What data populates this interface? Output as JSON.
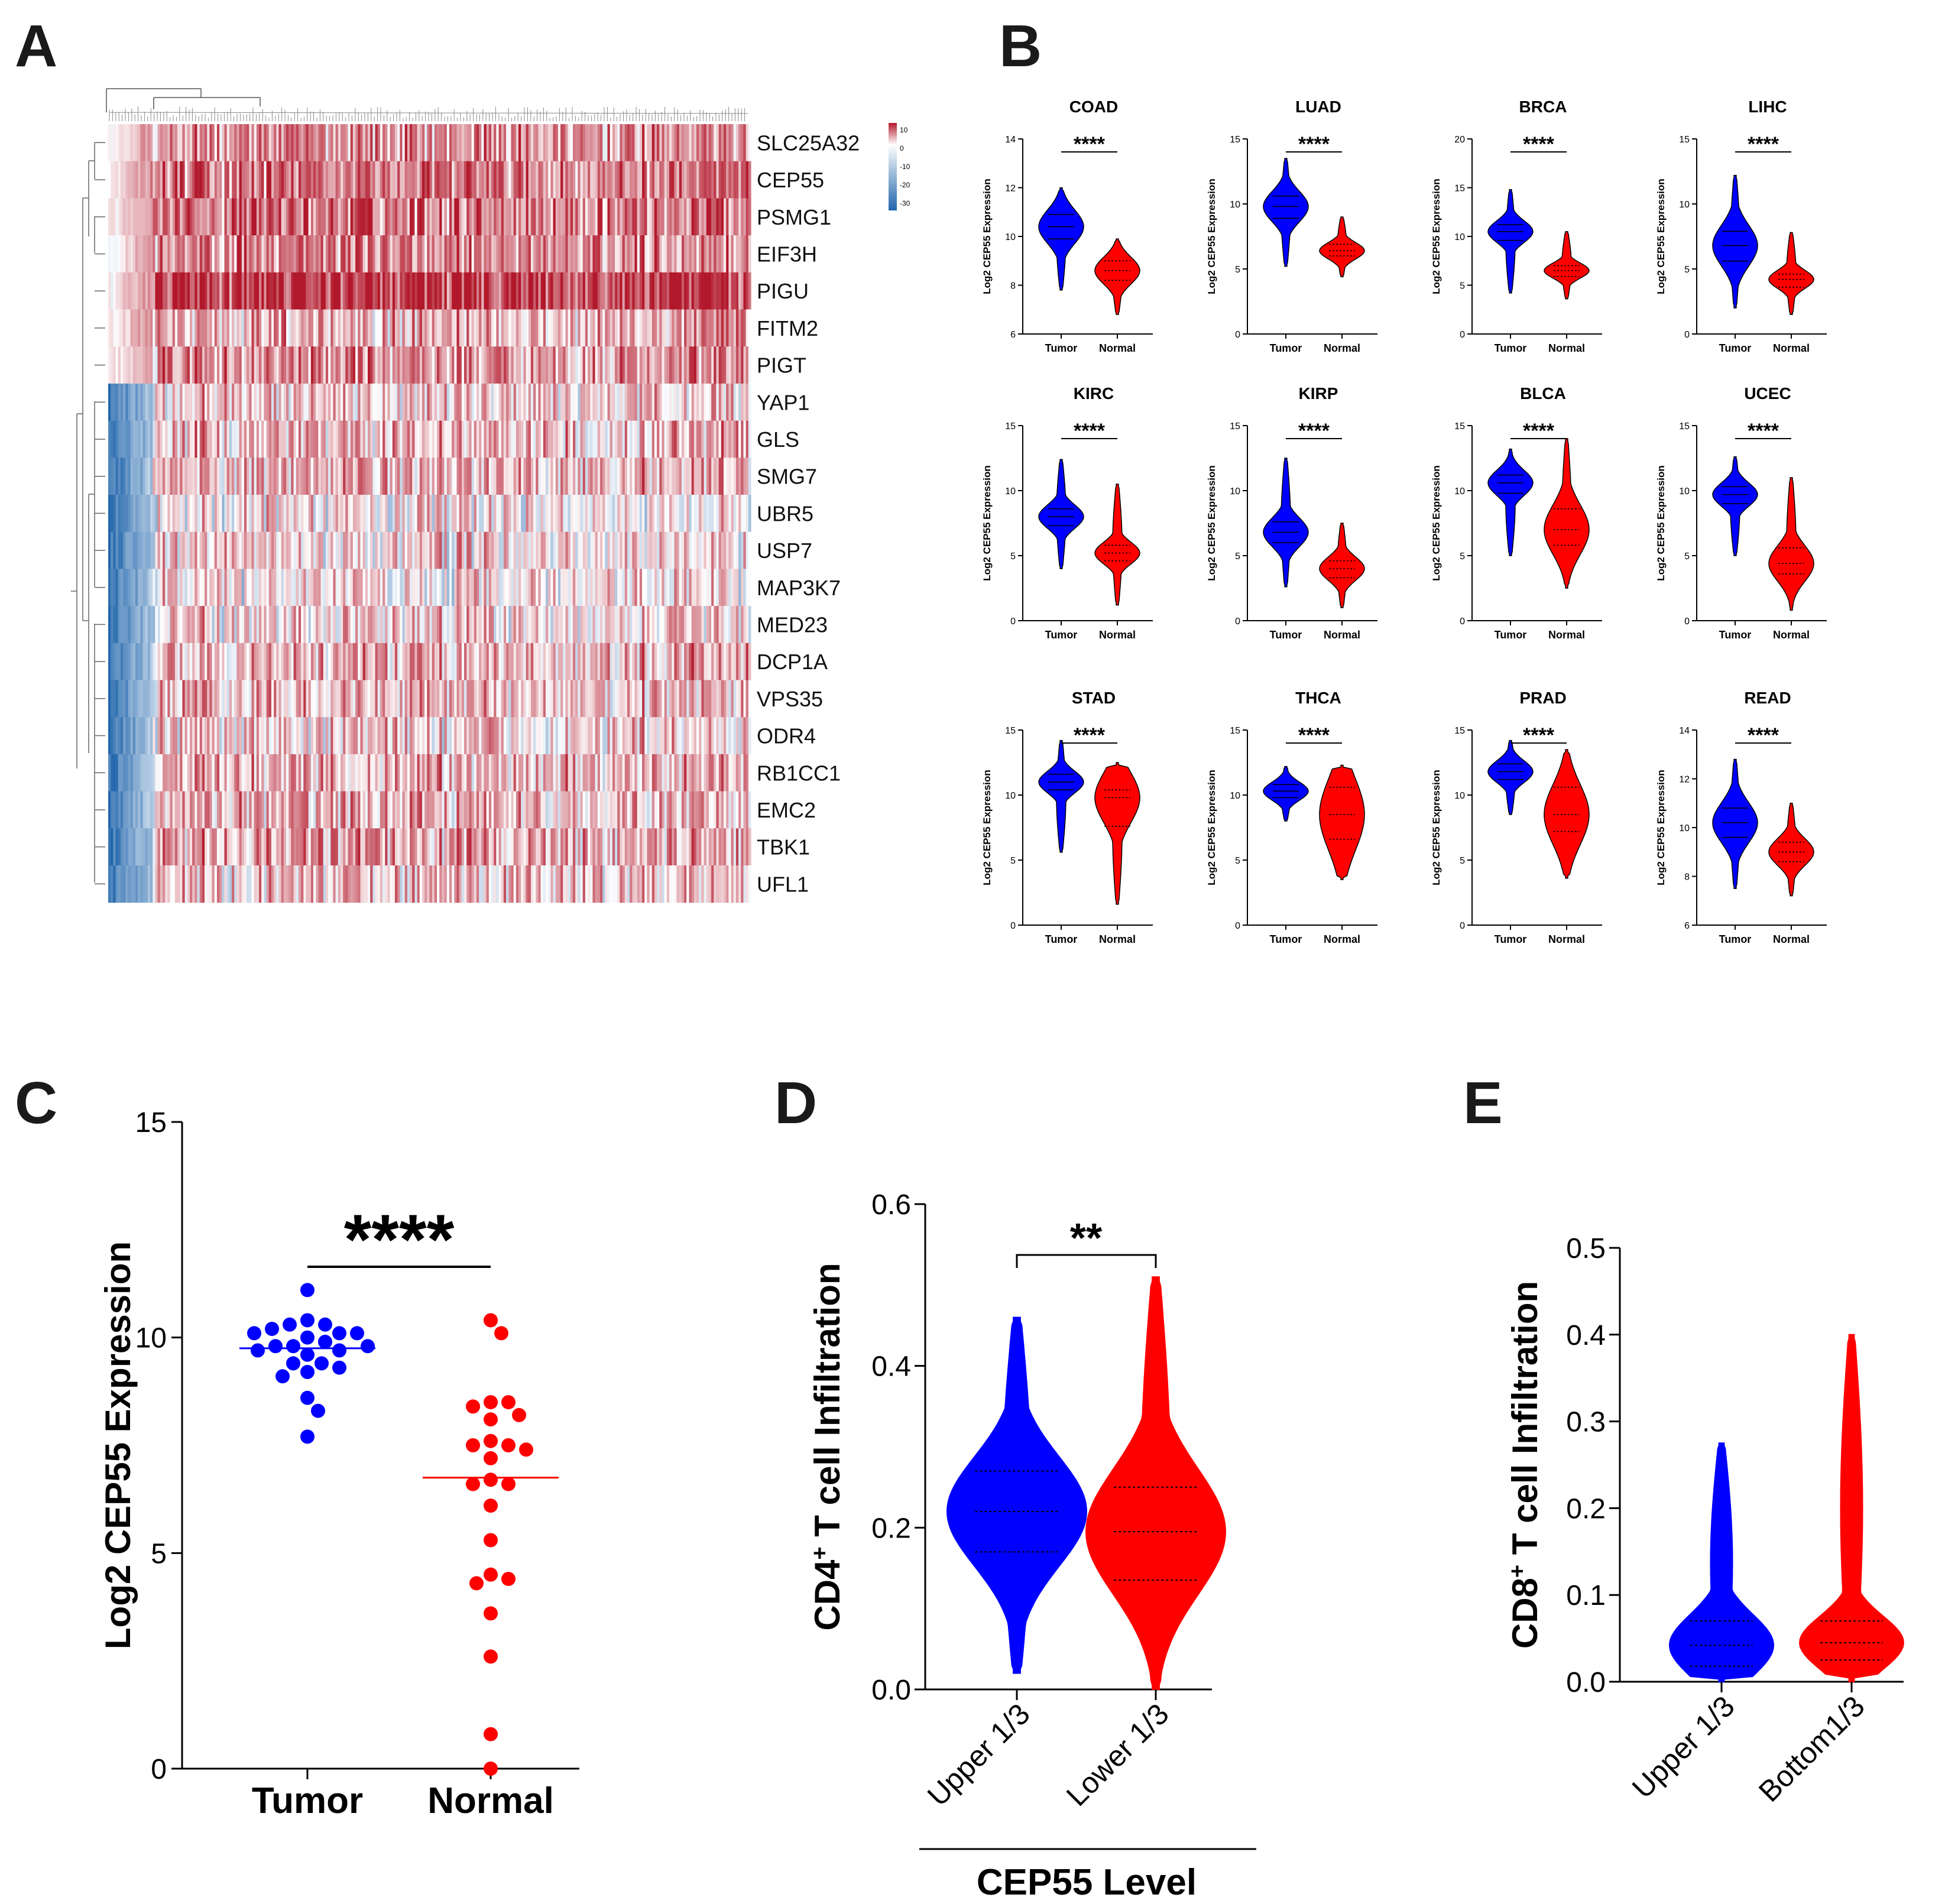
{
  "panels": {
    "a": "A",
    "b": "B",
    "c": "C",
    "d": "D",
    "e": "E"
  },
  "colors": {
    "tumor": "#0000ff",
    "normal": "#ff0000",
    "heat_high": "#b2182b",
    "heat_low": "#2166ac"
  },
  "chart_data": [
    {
      "id": "heatmap",
      "type": "heatmap",
      "genes": [
        "SLC25A32",
        "CEP55",
        "PSMG1",
        "EIF3H",
        "PIGU",
        "FITM2",
        "PIGT",
        "YAP1",
        "GLS",
        "SMG7",
        "UBR5",
        "USP7",
        "MAP3K7",
        "MED23",
        "DCP1A",
        "VPS35",
        "ODR4",
        "RB1CC1",
        "EMC2",
        "TBK1",
        "UFL1"
      ],
      "row_mean": [
        0.45,
        0.55,
        0.6,
        0.5,
        0.85,
        0.35,
        0.45,
        0.2,
        0.3,
        0.3,
        0.1,
        0.15,
        0.1,
        0.15,
        0.3,
        0.25,
        0.2,
        0.3,
        0.3,
        0.35,
        0.25
      ],
      "n_columns": 260,
      "legend_ticks": [
        "10",
        "0",
        "-10",
        "-20",
        "-30"
      ]
    },
    {
      "id": "violins",
      "type": "violin",
      "ylabel": "Log2 CEP55 Expression",
      "categories": [
        "Tumor",
        "Normal"
      ],
      "significance": "****",
      "panels": [
        {
          "title": "COAD",
          "ylim": [
            6,
            14
          ],
          "yticks": [
            "6",
            "8",
            "10",
            "12",
            "14"
          ],
          "tumor": {
            "median": 10.4,
            "min": 7.8,
            "max": 12.0,
            "q1": 9.9,
            "q3": 10.9
          },
          "normal": {
            "median": 8.6,
            "min": 6.8,
            "max": 9.9,
            "q1": 8.2,
            "q3": 9.0
          }
        },
        {
          "title": "LUAD",
          "ylim": [
            0,
            15
          ],
          "yticks": [
            "0",
            "5",
            "10",
            "15"
          ],
          "tumor": {
            "median": 9.8,
            "min": 5.2,
            "max": 13.5,
            "q1": 8.9,
            "q3": 10.6
          },
          "normal": {
            "median": 6.4,
            "min": 4.4,
            "max": 9.0,
            "q1": 6.0,
            "q3": 6.9
          }
        },
        {
          "title": "BRCA",
          "ylim": [
            0,
            20
          ],
          "yticks": [
            "0",
            "5",
            "10",
            "15",
            "20"
          ],
          "tumor": {
            "median": 10.5,
            "min": 4.2,
            "max": 14.8,
            "q1": 9.6,
            "q3": 11.2
          },
          "normal": {
            "median": 6.5,
            "min": 3.6,
            "max": 10.5,
            "q1": 5.9,
            "q3": 7.0
          }
        },
        {
          "title": "LIHC",
          "ylim": [
            0,
            15
          ],
          "yticks": [
            "0",
            "5",
            "10",
            "15"
          ],
          "tumor": {
            "median": 6.8,
            "min": 2.0,
            "max": 12.2,
            "q1": 5.6,
            "q3": 7.9
          },
          "normal": {
            "median": 4.2,
            "min": 1.5,
            "max": 7.8,
            "q1": 3.6,
            "q3": 4.6
          }
        },
        {
          "title": "KIRC",
          "ylim": [
            0,
            15
          ],
          "yticks": [
            "0",
            "5",
            "10",
            "15"
          ],
          "tumor": {
            "median": 8.0,
            "min": 4.0,
            "max": 12.4,
            "q1": 7.3,
            "q3": 8.6
          },
          "normal": {
            "median": 5.2,
            "min": 1.2,
            "max": 10.5,
            "q1": 4.6,
            "q3": 5.8
          }
        },
        {
          "title": "KIRP",
          "ylim": [
            0,
            15
          ],
          "yticks": [
            "0",
            "5",
            "10",
            "15"
          ],
          "tumor": {
            "median": 6.8,
            "min": 2.6,
            "max": 12.5,
            "q1": 6.0,
            "q3": 7.6
          },
          "normal": {
            "median": 4.0,
            "min": 1.0,
            "max": 7.5,
            "q1": 3.3,
            "q3": 4.6
          }
        },
        {
          "title": "BLCA",
          "ylim": [
            0,
            15
          ],
          "yticks": [
            "0",
            "5",
            "10",
            "15"
          ],
          "tumor": {
            "median": 10.6,
            "min": 5.0,
            "max": 13.2,
            "q1": 9.8,
            "q3": 11.2
          },
          "normal": {
            "median": 7.0,
            "min": 2.5,
            "max": 14.0,
            "q1": 5.8,
            "q3": 8.6
          }
        },
        {
          "title": "UCEC",
          "ylim": [
            0,
            15
          ],
          "yticks": [
            "0",
            "5",
            "10",
            "15"
          ],
          "tumor": {
            "median": 9.7,
            "min": 5.0,
            "max": 12.6,
            "q1": 9.0,
            "q3": 10.3
          },
          "normal": {
            "median": 4.4,
            "min": 0.8,
            "max": 11.0,
            "q1": 3.6,
            "q3": 5.6
          }
        },
        {
          "title": "STAD",
          "ylim": [
            0,
            15
          ],
          "yticks": [
            "0",
            "5",
            "10",
            "15"
          ],
          "tumor": {
            "median": 11.0,
            "min": 5.6,
            "max": 14.2,
            "q1": 10.4,
            "q3": 11.6
          },
          "normal": {
            "median": 9.8,
            "min": 1.6,
            "max": 12.5,
            "q1": 7.6,
            "q3": 10.4
          }
        },
        {
          "title": "THCA",
          "ylim": [
            0,
            15
          ],
          "yticks": [
            "0",
            "5",
            "10",
            "15"
          ],
          "tumor": {
            "median": 10.3,
            "min": 8.0,
            "max": 12.2,
            "q1": 9.8,
            "q3": 10.8
          },
          "normal": {
            "median": 8.5,
            "min": 3.5,
            "max": 12.3,
            "q1": 6.6,
            "q3": 10.6
          }
        },
        {
          "title": "PRAD",
          "ylim": [
            0,
            15
          ],
          "yticks": [
            "0",
            "5",
            "10",
            "15"
          ],
          "tumor": {
            "median": 11.8,
            "min": 8.5,
            "max": 14.2,
            "q1": 11.2,
            "q3": 12.4
          },
          "normal": {
            "median": 8.5,
            "min": 3.6,
            "max": 13.5,
            "q1": 7.2,
            "q3": 10.6
          }
        },
        {
          "title": "READ",
          "ylim": [
            6,
            14
          ],
          "yticks": [
            "6",
            "8",
            "10",
            "12",
            "14"
          ],
          "tumor": {
            "median": 10.2,
            "min": 7.5,
            "max": 12.8,
            "q1": 9.6,
            "q3": 10.8
          },
          "normal": {
            "median": 9.0,
            "min": 7.2,
            "max": 11.0,
            "q1": 8.6,
            "q3": 9.4
          }
        }
      ]
    },
    {
      "id": "dotplot",
      "type": "scatter",
      "ylabel": "Log2 CEP55 Expression",
      "ylim": [
        0,
        15
      ],
      "yticks": [
        "0",
        "5",
        "10",
        "15"
      ],
      "categories": [
        "Tumor",
        "Normal"
      ],
      "significance": "****",
      "tumor": [
        11.1,
        10.4,
        10.3,
        10.3,
        10.1,
        10.2,
        10.1,
        10.1,
        10.0,
        9.9,
        9.8,
        9.8,
        9.8,
        9.7,
        9.7,
        9.6,
        9.4,
        9.4,
        9.3,
        9.2,
        9.1,
        8.6,
        8.3,
        7.7
      ],
      "normal": [
        10.4,
        10.1,
        8.5,
        8.5,
        8.4,
        8.2,
        8.1,
        7.6,
        7.5,
        7.5,
        7.4,
        7.2,
        6.7,
        6.6,
        6.6,
        6.1,
        5.3,
        4.5,
        4.4,
        4.3,
        3.6,
        2.6,
        0.8,
        0.0
      ],
      "tumor_median": 9.75,
      "normal_median": 6.75
    },
    {
      "id": "cd4",
      "type": "violin",
      "ylabel": "T cell Infiltration",
      "ylabel_prefix": "CD4",
      "ylabel_sup": "+",
      "xlabel": "CEP55 Level",
      "ylim": [
        0,
        0.6
      ],
      "yticks": [
        "0.0",
        "0.2",
        "0.4",
        "0.6"
      ],
      "categories": [
        "Upper 1/3",
        "Lower 1/3"
      ],
      "significance": "**",
      "series": [
        {
          "name": "Upper 1/3",
          "min": 0.02,
          "max": 0.46,
          "q1": 0.17,
          "median": 0.22,
          "q3": 0.27
        },
        {
          "name": "Lower 1/3",
          "min": 0.0,
          "max": 0.51,
          "q1": 0.135,
          "median": 0.195,
          "q3": 0.25
        }
      ]
    },
    {
      "id": "cd8",
      "type": "violin",
      "ylabel": "T cell Infiltration",
      "ylabel_prefix": "CD8",
      "ylabel_sup": "+",
      "ylim": [
        0,
        0.5
      ],
      "yticks": [
        "0.0",
        "0.1",
        "0.2",
        "0.3",
        "0.4",
        "0.5"
      ],
      "categories": [
        "Upper 1/3",
        "Bottom1/3"
      ],
      "series": [
        {
          "name": "Upper 1/3",
          "min": 0.0,
          "max": 0.275,
          "q1": 0.018,
          "median": 0.042,
          "q3": 0.07
        },
        {
          "name": "Bottom1/3",
          "min": 0.0,
          "max": 0.4,
          "q1": 0.025,
          "median": 0.045,
          "q3": 0.07
        }
      ]
    }
  ]
}
